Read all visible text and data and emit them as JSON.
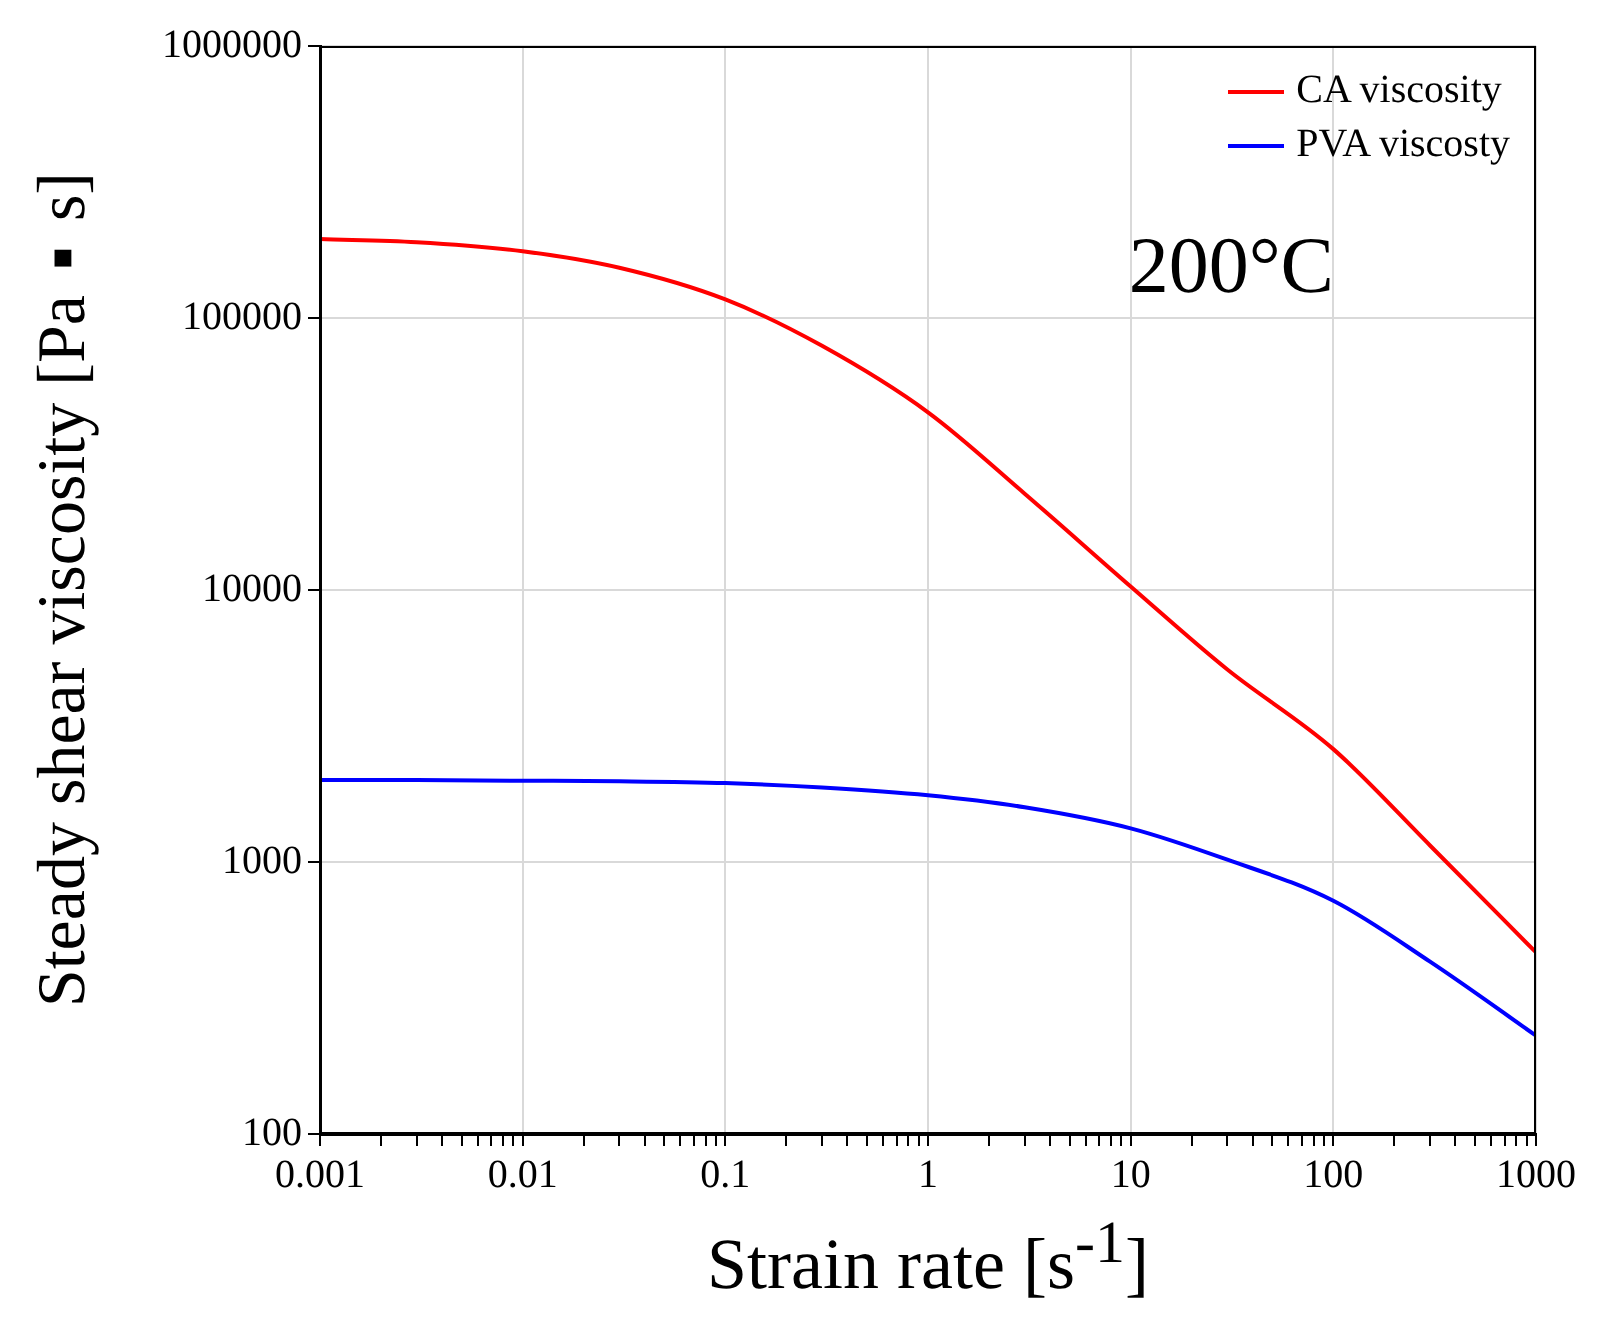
{
  "chart_data": {
    "type": "line",
    "xlabel": "Strain rate [s$^{-1}$]",
    "ylabel": "Steady shear viscosity [Pa▪s]",
    "x": [
      0.001,
      0.003,
      0.01,
      0.03,
      0.1,
      0.3,
      1,
      3,
      10,
      30,
      100,
      300,
      1000
    ],
    "series": [
      {
        "name": "CA viscosity",
        "color": "#ff0000",
        "values": [
          195000,
          190000,
          176000,
          153000,
          117000,
          79000,
          45000,
          22600,
          10300,
          5100,
          2600,
          1150,
          465
        ]
      },
      {
        "name": "PVA viscosty",
        "color": "#0000ff",
        "values": [
          2000,
          2000,
          1990,
          1980,
          1950,
          1880,
          1760,
          1590,
          1330,
          1020,
          720,
          430,
          230
        ]
      }
    ],
    "log": "xy",
    "xlim": [
      0.001,
      1000
    ],
    "ylim": [
      100,
      1000000
    ],
    "xticks": [
      0.001,
      {
        "value": 0.002,
        "label": null
      },
      {
        "value": 0.003,
        "label": null
      },
      {
        "value": 0.004,
        "label": null
      },
      {
        "value": 0.005,
        "label": null
      },
      {
        "value": 0.006,
        "label": null
      },
      {
        "value": 0.007,
        "label": null
      },
      {
        "value": 0.008,
        "label": null
      },
      {
        "value": 0.009,
        "label": null
      },
      0.01,
      {
        "value": 0.02,
        "label": null
      },
      {
        "value": 0.03,
        "label": null
      },
      {
        "value": 0.04,
        "label": null
      },
      {
        "value": 0.05,
        "label": null
      },
      {
        "value": 0.06,
        "label": null
      },
      {
        "value": 0.07,
        "label": null
      },
      {
        "value": 0.08,
        "label": null
      },
      {
        "value": 0.09,
        "label": null
      },
      0.1,
      {
        "value": 0.2,
        "label": null
      },
      {
        "value": 0.3,
        "label": null
      },
      {
        "value": 0.4,
        "label": null
      },
      {
        "value": 0.5,
        "label": null
      },
      {
        "value": 0.6,
        "label": null
      },
      {
        "value": 0.7,
        "label": null
      },
      {
        "value": 0.8,
        "label": null
      },
      {
        "value": 0.9,
        "label": null
      },
      1,
      {
        "value": 2,
        "label": null
      },
      {
        "value": 3,
        "label": null
      },
      {
        "value": 4,
        "label": null
      },
      {
        "value": 5,
        "label": null
      },
      {
        "value": 6,
        "label": null
      },
      {
        "value": 7,
        "label": null
      },
      {
        "value": 8,
        "label": null
      },
      {
        "value": 9,
        "label": null
      },
      10,
      {
        "value": 20,
        "label": null
      },
      {
        "value": 30,
        "label": null
      },
      {
        "value": 40,
        "label": null
      },
      {
        "value": 50,
        "label": null
      },
      {
        "value": 60,
        "label": null
      },
      {
        "value": 70,
        "label": null
      },
      {
        "value": 80,
        "label": null
      },
      {
        "value": 90,
        "label": null
      },
      100,
      {
        "value": 200,
        "label": null
      },
      {
        "value": 300,
        "label": null
      },
      {
        "value": 400,
        "label": null
      },
      {
        "value": 500,
        "label": null
      },
      {
        "value": 600,
        "label": null
      },
      {
        "value": 700,
        "label": null
      },
      {
        "value": 800,
        "label": null
      },
      {
        "value": 900,
        "label": null
      },
      1000
    ],
    "yticks": [
      100,
      1000,
      10000,
      100000,
      1000000
    ],
    "grid": true,
    "legend": "top right",
    "marker": "none",
    "line_style": "solid",
    "annotations": [
      "200°C"
    ]
  }
}
